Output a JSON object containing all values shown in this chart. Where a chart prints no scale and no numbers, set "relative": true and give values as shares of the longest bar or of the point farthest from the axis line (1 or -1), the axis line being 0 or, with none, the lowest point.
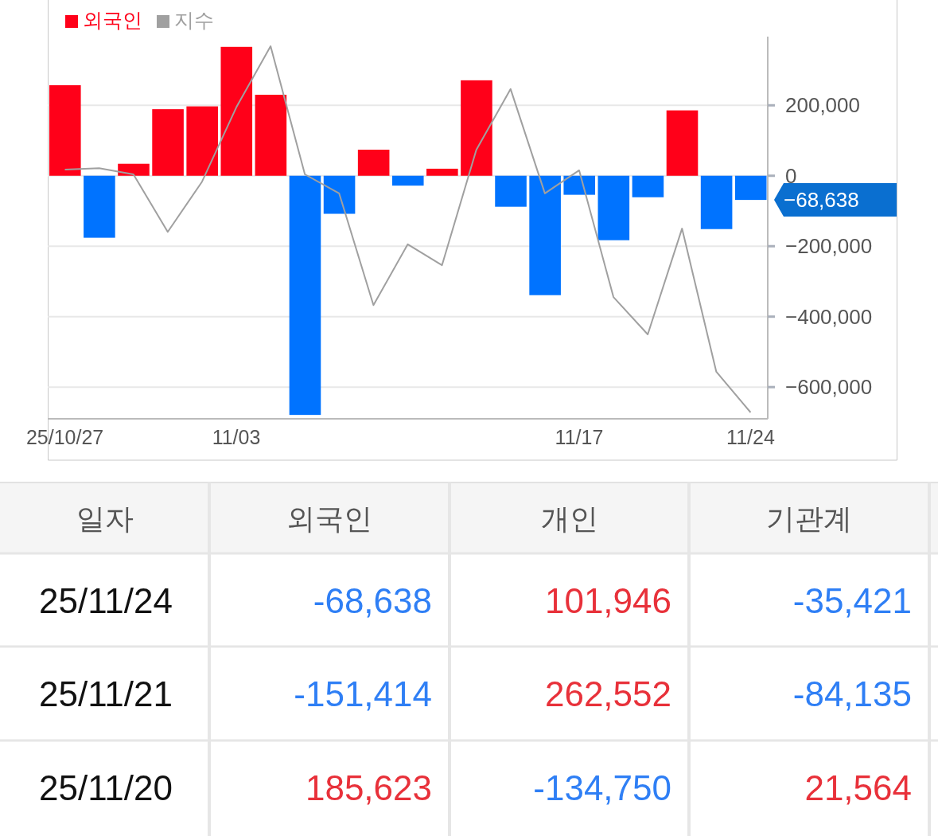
{
  "chart_data": [
    {
      "type": "bar",
      "categories": [
        "25/10/27",
        null,
        null,
        null,
        null,
        "11/03",
        null,
        null,
        null,
        null,
        null,
        null,
        null,
        null,
        null,
        "11/17",
        null,
        null,
        null,
        null,
        "11/24"
      ],
      "series": [
        {
          "name": "외국인",
          "color": "#ff0019",
          "colors": [
            "#ff0019",
            "#0073ff",
            "#ff0019",
            "#ff0019",
            "#ff0019",
            "#ff0019",
            "#ff0019",
            "#0073ff",
            "#0073ff",
            "#ff0019",
            "#0073ff",
            "#ff0019",
            "#ff0019",
            "#0073ff",
            "#0073ff",
            "#0073ff",
            "#0073ff",
            "#0073ff",
            "#ff0019",
            "#0073ff",
            "#0073ff"
          ],
          "values": [
            257000,
            -176000,
            34000,
            189000,
            197000,
            366000,
            230000,
            -679000,
            -108000,
            74000,
            -28000,
            20000,
            271000,
            -88000,
            -339000,
            -54000,
            -183000,
            -61000,
            185623,
            -151414,
            -68638
          ]
        }
      ],
      "ylim": [
        -690000,
        395000
      ],
      "yticks": [
        {
          "value": 200000,
          "label": "200,000"
        },
        0,
        {
          "value": -200000,
          "label": "−200,000"
        },
        {
          "value": -400000,
          "label": "−400,000"
        },
        {
          "value": -600000,
          "label": "−600,000"
        }
      ],
      "grid": "y",
      "legend": "top left",
      "annotations": [
        "−68,638"
      ]
    },
    {
      "type": "line",
      "relative": true,
      "legend": "top left",
      "categories": [
        null,
        null,
        null,
        null,
        null,
        null,
        null,
        null,
        null,
        null,
        null,
        null,
        null,
        null,
        null,
        null,
        null,
        null,
        null,
        null,
        null
      ],
      "series": [
        {
          "name": "지수",
          "color": "#a0a0a0",
          "values": [
            0.663,
            0.667,
            0.65,
            0.493,
            0.63,
            0.833,
            1,
            0.65,
            0.598,
            0.293,
            0.459,
            0.402,
            0.717,
            0.883,
            0.598,
            0.661,
            0.315,
            0.213,
            0.502,
            0.111,
            0
          ]
        }
      ]
    },
    {
      "type": "other",
      "ylabel": "일자",
      "categories": [
        "외국인",
        "개인",
        "기관계"
      ],
      "y_categories": [
        "25/11/24",
        "25/11/21",
        "25/11/20"
      ],
      "cell_labels": [
        [
          "-68,638",
          "101,946",
          "-35,421"
        ],
        [
          "-151,414",
          "262,552",
          "-84,135"
        ],
        [
          "185,623",
          "-134,750",
          "21,564"
        ]
      ]
    }
  ]
}
